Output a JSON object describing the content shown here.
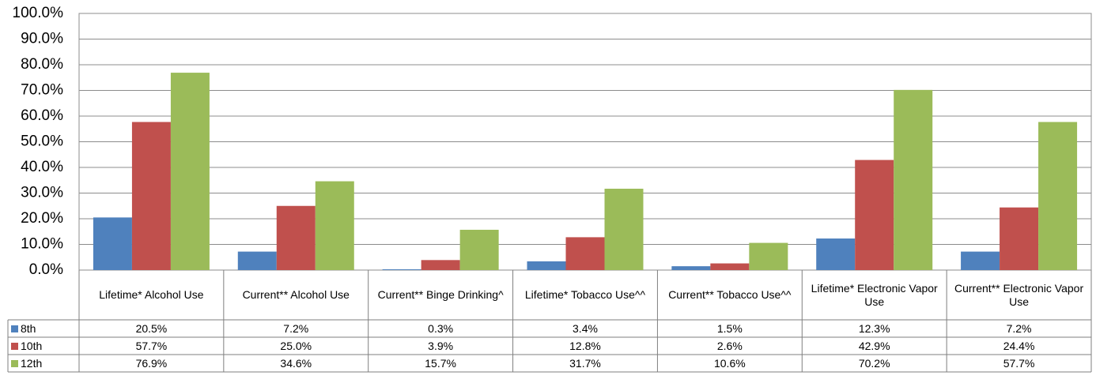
{
  "chart_data": {
    "type": "bar",
    "categories": [
      "Lifetime* Alcohol Use",
      "Current** Alcohol Use",
      "Current** Binge Drinking^",
      "Lifetime* Tobacco Use^^",
      "Current** Tobacco Use^^",
      "Lifetime* Electronic Vapor Use",
      "Current** Electronic Vapor Use"
    ],
    "series": [
      {
        "name": "8th",
        "color": "#4f81bd",
        "values": [
          20.5,
          7.2,
          0.3,
          3.4,
          1.5,
          12.3,
          7.2
        ],
        "value_labels": [
          "20.5%",
          "7.2%",
          "0.3%",
          "3.4%",
          "1.5%",
          "12.3%",
          "7.2%"
        ]
      },
      {
        "name": "10th",
        "color": "#c0504d",
        "values": [
          57.7,
          25.0,
          3.9,
          12.8,
          2.6,
          42.9,
          24.4
        ],
        "value_labels": [
          "57.7%",
          "25.0%",
          "3.9%",
          "12.8%",
          "2.6%",
          "42.9%",
          "24.4%"
        ]
      },
      {
        "name": "12th",
        "color": "#9bbb59",
        "values": [
          76.9,
          34.6,
          15.7,
          31.7,
          10.6,
          70.2,
          57.7
        ],
        "value_labels": [
          "76.9%",
          "34.6%",
          "15.7%",
          "31.7%",
          "10.6%",
          "70.2%",
          "57.7%"
        ]
      }
    ],
    "ylim": [
      0,
      100
    ],
    "yticks": [
      {
        "value": 0,
        "label": "0.0%"
      },
      {
        "value": 10,
        "label": "10.0%"
      },
      {
        "value": 20,
        "label": "20.0%"
      },
      {
        "value": 30,
        "label": "30.0%"
      },
      {
        "value": 40,
        "label": "40.0%"
      },
      {
        "value": 50,
        "label": "50.0%"
      },
      {
        "value": 60,
        "label": "60.0%"
      },
      {
        "value": 70,
        "label": "70.0%"
      },
      {
        "value": 80,
        "label": "80.0%"
      },
      {
        "value": 90,
        "label": "90.0%"
      },
      {
        "value": 100,
        "label": "100.0%"
      }
    ],
    "grid": true
  }
}
